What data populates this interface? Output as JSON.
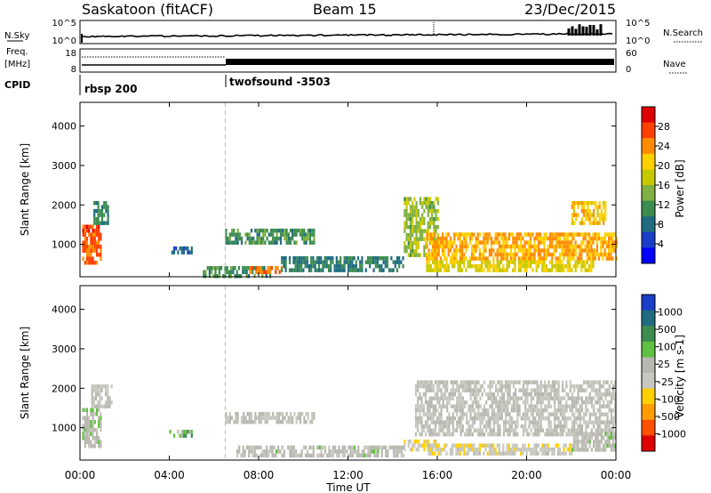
{
  "header": {
    "station": "Saskatoon (fitACF)",
    "beam": "Beam 15",
    "date": "23/Dec/2015"
  },
  "top_panel": {
    "nsky_label": "N.Sky",
    "nsky_ticks": [
      "10^5",
      "10^0"
    ],
    "nsearch_label": "N.Search",
    "nsearch_ticks": [
      "10^5",
      "10^0"
    ]
  },
  "freq_panel": {
    "freq_label": "Freq.",
    "freq_unit": "[MHz]",
    "freq_ticks": [
      "18",
      "8"
    ],
    "nave_label": "Nave",
    "nave_ticks": [
      "60",
      "0"
    ]
  },
  "cpid": {
    "label": "CPID",
    "segments": [
      {
        "name": "rbsp 200",
        "start_hour": 0
      },
      {
        "name": "twofsound -3503",
        "start_hour": 6.5
      }
    ]
  },
  "power_colorbar": {
    "label": "Power [dB]",
    "ticks": [
      "28",
      "24",
      "20",
      "16",
      "12",
      "8",
      "4"
    ],
    "colors": [
      "#e00000",
      "#ff4000",
      "#ff8c00",
      "#ffd000",
      "#c8c800",
      "#80b040",
      "#3c8c50",
      "#1f6c80",
      "#1a3ec8",
      "#0000ff"
    ]
  },
  "velocity_colorbar": {
    "label": "Velocity [m s-1]",
    "ticks": [
      "1000",
      "500",
      "100",
      "25",
      "-25",
      "-100",
      "-500",
      "-1000"
    ],
    "colors": [
      "#1a3ec8",
      "#1f6c80",
      "#3c8c50",
      "#60c040",
      "#b8b8b0",
      "#c8c8c0",
      "#ffd000",
      "#ff9c00",
      "#ff5000",
      "#e00000"
    ]
  },
  "chart_data": [
    {
      "type": "heatmap",
      "title": "",
      "xlabel": "Time UT",
      "ylabel": "Slant Range [km]",
      "xticks": [
        "00:00",
        "04:00",
        "08:00",
        "12:00",
        "16:00",
        "20:00",
        "00:00"
      ],
      "yticks": [
        "1000",
        "2000",
        "3000",
        "4000"
      ],
      "xlim_hours": [
        0,
        24
      ],
      "ylim_km": [
        180,
        4600
      ],
      "value_label": "Power [dB]",
      "zlim": [
        0,
        30
      ],
      "echo_regions": [
        {
          "t0": 0.1,
          "t1": 0.9,
          "r0": 500,
          "r1": 1500,
          "value": 26
        },
        {
          "t0": 0.6,
          "t1": 1.3,
          "r0": 1500,
          "r1": 2100,
          "value": 9
        },
        {
          "t0": 4.0,
          "t1": 5.0,
          "r0": 800,
          "r1": 950,
          "value": 6
        },
        {
          "t0": 6.5,
          "t1": 10.5,
          "r0": 1000,
          "r1": 1400,
          "value": 10
        },
        {
          "t0": 5.5,
          "t1": 8.5,
          "r0": 180,
          "r1": 450,
          "value": 10
        },
        {
          "t0": 7.5,
          "t1": 9.0,
          "r0": 250,
          "r1": 450,
          "value": 24
        },
        {
          "t0": 9.0,
          "t1": 14.5,
          "r0": 350,
          "r1": 700,
          "value": 8
        },
        {
          "t0": 14.5,
          "t1": 16.0,
          "r0": 700,
          "r1": 2200,
          "value": 14
        },
        {
          "t0": 15.5,
          "t1": 24.0,
          "r0": 600,
          "r1": 1300,
          "value": 22
        },
        {
          "t0": 15.5,
          "t1": 23.0,
          "r0": 350,
          "r1": 600,
          "value": 18
        },
        {
          "t0": 22.0,
          "t1": 23.5,
          "r0": 1500,
          "r1": 2100,
          "value": 20
        }
      ],
      "time_marker_hour": 6.5
    },
    {
      "type": "heatmap",
      "title": "",
      "xlabel": "Time UT",
      "ylabel": "Slant Range [km]",
      "xticks": [
        "00:00",
        "04:00",
        "08:00",
        "12:00",
        "16:00",
        "20:00",
        "00:00"
      ],
      "yticks": [
        "1000",
        "2000",
        "3000",
        "4000"
      ],
      "xlim_hours": [
        0,
        24
      ],
      "ylim_km": [
        180,
        4600
      ],
      "value_label": "Velocity [m s-1]",
      "zlim": [
        -1000,
        1000
      ],
      "echo_regions": [
        {
          "t0": 0.1,
          "t1": 0.9,
          "r0": 500,
          "r1": 1500,
          "value": 120
        },
        {
          "t0": 0.5,
          "t1": 1.4,
          "r0": 1500,
          "r1": 2100,
          "value": 0
        },
        {
          "t0": 4.0,
          "t1": 5.0,
          "r0": 800,
          "r1": 950,
          "value": 300
        },
        {
          "t0": 6.5,
          "t1": 10.5,
          "r0": 1150,
          "r1": 1400,
          "value": 0
        },
        {
          "t0": 7.0,
          "t1": 14.5,
          "r0": 250,
          "r1": 550,
          "value": 60
        },
        {
          "t0": 14.5,
          "t1": 16.0,
          "r0": 400,
          "r1": 700,
          "value": -200
        },
        {
          "t0": 15.0,
          "t1": 24.0,
          "r0": 800,
          "r1": 2200,
          "value": 0
        },
        {
          "t0": 15.5,
          "t1": 22.0,
          "r0": 300,
          "r1": 600,
          "value": -150
        },
        {
          "t0": 22.0,
          "t1": 24.0,
          "r0": 400,
          "r1": 900,
          "value": 80
        }
      ],
      "time_marker_hour": 6.5
    }
  ]
}
